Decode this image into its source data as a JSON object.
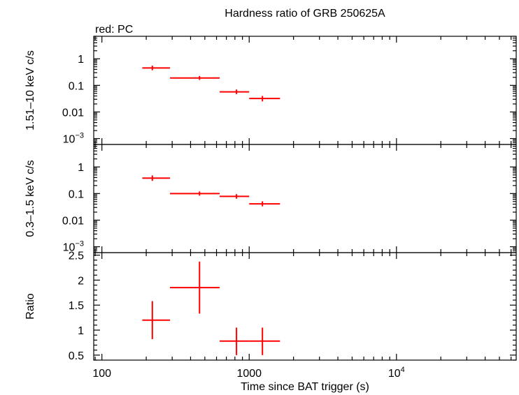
{
  "chart_data": {
    "type": "scatter",
    "title": "Hardness ratio of GRB 250625A",
    "legend_note": "red: PC",
    "xlabel": "Time since BAT trigger (s)",
    "x_scale": "log",
    "xlim": [
      88,
      65000
    ],
    "x_ticks": [
      {
        "value": 100,
        "label": "100"
      },
      {
        "value": 1000,
        "label": "1000"
      },
      {
        "value": 10000,
        "label": "10",
        "sup": "4"
      }
    ],
    "color": "#ff0000",
    "panels": [
      {
        "id": "hard",
        "ylabel": "1.51–10 keV c/s",
        "y_scale": "log",
        "ylim": [
          0.0006,
          7
        ],
        "y_ticks": [
          {
            "value": 1,
            "label": "1"
          },
          {
            "value": 0.1,
            "label": "0.1"
          },
          {
            "value": 0.01,
            "label": "0.01"
          },
          {
            "value": 0.001,
            "label": "10",
            "sup": "−3"
          }
        ],
        "points": [
          {
            "x": 220,
            "xlo": 188,
            "xhi": 290,
            "y": 0.45,
            "ylo": 0.37,
            "yhi": 0.55
          },
          {
            "x": 460,
            "xlo": 290,
            "xhi": 630,
            "y": 0.19,
            "ylo": 0.16,
            "yhi": 0.225
          },
          {
            "x": 820,
            "xlo": 630,
            "xhi": 1000,
            "y": 0.057,
            "ylo": 0.047,
            "yhi": 0.07
          },
          {
            "x": 1230,
            "xlo": 1000,
            "xhi": 1620,
            "y": 0.032,
            "ylo": 0.025,
            "yhi": 0.04
          }
        ]
      },
      {
        "id": "soft",
        "ylabel": "0.3–1.5 keV c/s",
        "y_scale": "log",
        "ylim": [
          0.0006,
          7
        ],
        "y_ticks": [
          {
            "value": 1,
            "label": "1"
          },
          {
            "value": 0.1,
            "label": "0.1"
          },
          {
            "value": 0.01,
            "label": "0.01"
          },
          {
            "value": 0.001,
            "label": "10",
            "sup": "−3"
          }
        ],
        "points": [
          {
            "x": 220,
            "xlo": 188,
            "xhi": 290,
            "y": 0.38,
            "ylo": 0.3,
            "yhi": 0.48
          },
          {
            "x": 460,
            "xlo": 290,
            "xhi": 630,
            "y": 0.1,
            "ylo": 0.083,
            "yhi": 0.12
          },
          {
            "x": 820,
            "xlo": 630,
            "xhi": 1000,
            "y": 0.078,
            "ylo": 0.064,
            "yhi": 0.095
          },
          {
            "x": 1230,
            "xlo": 1000,
            "xhi": 1620,
            "y": 0.041,
            "ylo": 0.033,
            "yhi": 0.051
          }
        ]
      },
      {
        "id": "ratio",
        "ylabel": "Ratio",
        "y_scale": "linear",
        "ylim": [
          0.4,
          2.55
        ],
        "y_ticks": [
          {
            "value": 0.5,
            "label": "0.5"
          },
          {
            "value": 1,
            "label": "1"
          },
          {
            "value": 1.5,
            "label": "1.5"
          },
          {
            "value": 2,
            "label": "2"
          },
          {
            "value": 2.5,
            "label": "2.5"
          }
        ],
        "y_minor_step": 0.1,
        "points": [
          {
            "x": 220,
            "xlo": 188,
            "xhi": 290,
            "y": 1.2,
            "ylo": 0.82,
            "yhi": 1.58
          },
          {
            "x": 460,
            "xlo": 290,
            "xhi": 630,
            "y": 1.85,
            "ylo": 1.33,
            "yhi": 2.37
          },
          {
            "x": 820,
            "xlo": 630,
            "xhi": 1000,
            "y": 0.78,
            "ylo": 0.5,
            "yhi": 1.05
          },
          {
            "x": 1230,
            "xlo": 1000,
            "xhi": 1620,
            "y": 0.78,
            "ylo": 0.5,
            "yhi": 1.05
          }
        ]
      }
    ]
  }
}
